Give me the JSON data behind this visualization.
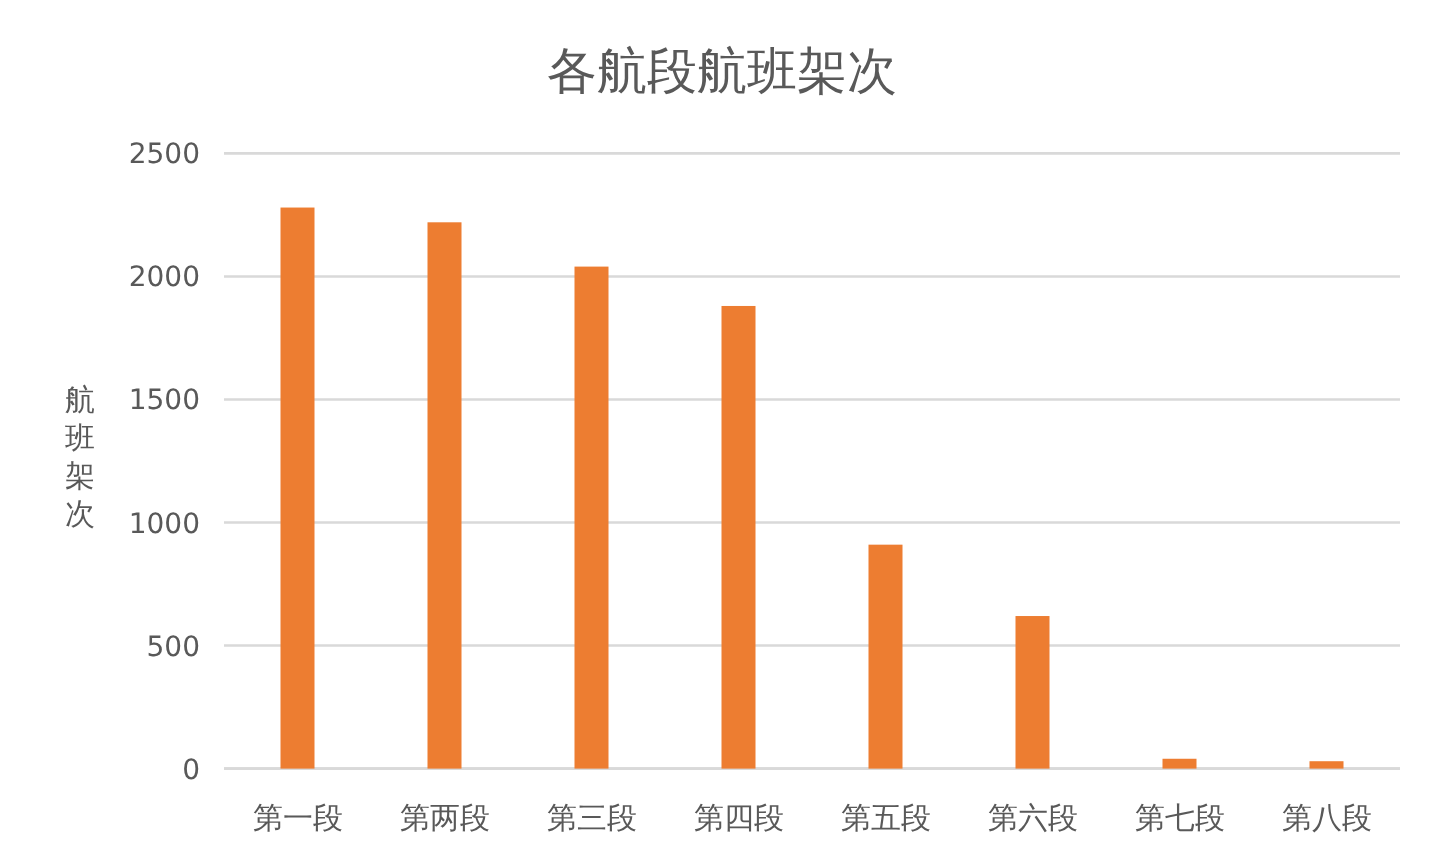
{
  "chart_data": {
    "type": "bar",
    "title": "各航段航班架次",
    "ylabel": "航班架次",
    "categories": [
      "第一段",
      "第两段",
      "第三段",
      "第四段",
      "第五段",
      "第六段",
      "第七段",
      "第八段"
    ],
    "values": [
      2280,
      2220,
      2040,
      1880,
      910,
      620,
      40,
      30
    ],
    "color": "#ed7d31",
    "ylim": [
      0,
      2500
    ],
    "yticks": [
      0,
      500,
      1000,
      1500,
      2000,
      2500
    ],
    "grid": "y"
  }
}
